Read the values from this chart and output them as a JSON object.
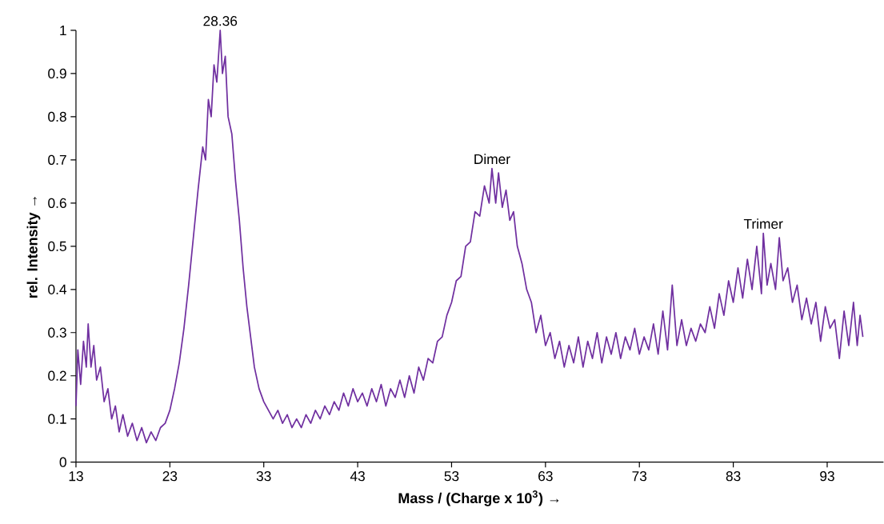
{
  "chart_data": {
    "type": "line",
    "xlabel": "Mass / (Charge x 10$^{3}$) →",
    "ylabel": "rel. Intensity →",
    "color": "#7030a0",
    "xlim": [
      13,
      99
    ],
    "ylim": [
      0,
      1
    ],
    "xticks": [
      13,
      23,
      33,
      43,
      53,
      63,
      73,
      83,
      93
    ],
    "yticks": [
      0,
      0.1,
      0.2,
      0.3,
      0.4,
      0.5,
      0.6,
      0.7,
      0.8,
      0.9,
      1
    ],
    "annotations": [
      {
        "text": "28.36",
        "x": 28.36,
        "y": 1.0
      },
      {
        "text": "Dimer",
        "x": 57.3,
        "y": 0.68
      },
      {
        "text": "Trimer",
        "x": 86.2,
        "y": 0.53
      }
    ],
    "x": [
      13,
      13.2,
      13.5,
      13.8,
      14.1,
      14.3,
      14.6,
      14.9,
      15.2,
      15.6,
      16,
      16.4,
      16.8,
      17.2,
      17.6,
      18,
      18.5,
      19,
      19.5,
      20,
      20.5,
      21,
      21.5,
      22,
      22.5,
      23,
      23.5,
      24,
      24.5,
      25,
      25.5,
      26,
      26.5,
      26.8,
      27.1,
      27.4,
      27.7,
      28,
      28.36,
      28.6,
      28.9,
      29.2,
      29.6,
      30,
      30.4,
      30.8,
      31.2,
      31.6,
      32,
      32.5,
      33,
      33.5,
      34,
      34.5,
      35,
      35.5,
      36,
      36.5,
      37,
      37.5,
      38,
      38.5,
      39,
      39.5,
      40,
      40.5,
      41,
      41.5,
      42,
      42.5,
      43,
      43.5,
      44,
      44.5,
      45,
      45.5,
      46,
      46.5,
      47,
      47.5,
      48,
      48.5,
      49,
      49.5,
      50,
      50.5,
      51,
      51.5,
      52,
      52.5,
      53,
      53.5,
      54,
      54.5,
      55,
      55.5,
      56,
      56.5,
      57,
      57.3,
      57.7,
      58,
      58.4,
      58.8,
      59.2,
      59.6,
      60,
      60.5,
      61,
      61.5,
      62,
      62.5,
      63,
      63.5,
      64,
      64.5,
      65,
      65.5,
      66,
      66.5,
      67,
      67.5,
      68,
      68.5,
      69,
      69.5,
      70,
      70.5,
      71,
      71.5,
      72,
      72.5,
      73,
      73.5,
      74,
      74.5,
      75,
      75.5,
      76,
      76.5,
      77,
      77.5,
      78,
      78.5,
      79,
      79.5,
      80,
      80.5,
      81,
      81.5,
      82,
      82.5,
      83,
      83.5,
      84,
      84.5,
      85,
      85.5,
      86,
      86.2,
      86.6,
      87,
      87.5,
      87.9,
      88.3,
      88.8,
      89.3,
      89.8,
      90.3,
      90.8,
      91.3,
      91.8,
      92.3,
      92.8,
      93.3,
      93.8,
      94.3,
      94.8,
      95.3,
      95.8,
      96.2,
      96.5,
      96.8
    ],
    "values": [
      0.13,
      0.26,
      0.18,
      0.28,
      0.22,
      0.32,
      0.22,
      0.27,
      0.19,
      0.22,
      0.14,
      0.17,
      0.1,
      0.13,
      0.07,
      0.11,
      0.06,
      0.09,
      0.05,
      0.08,
      0.045,
      0.07,
      0.05,
      0.08,
      0.09,
      0.12,
      0.17,
      0.23,
      0.31,
      0.41,
      0.52,
      0.63,
      0.73,
      0.7,
      0.84,
      0.8,
      0.92,
      0.88,
      1.0,
      0.9,
      0.94,
      0.8,
      0.76,
      0.65,
      0.56,
      0.45,
      0.36,
      0.29,
      0.22,
      0.17,
      0.14,
      0.12,
      0.1,
      0.12,
      0.09,
      0.11,
      0.08,
      0.1,
      0.08,
      0.11,
      0.09,
      0.12,
      0.1,
      0.13,
      0.11,
      0.14,
      0.12,
      0.16,
      0.13,
      0.17,
      0.14,
      0.16,
      0.13,
      0.17,
      0.14,
      0.18,
      0.13,
      0.17,
      0.15,
      0.19,
      0.15,
      0.2,
      0.16,
      0.22,
      0.19,
      0.24,
      0.23,
      0.28,
      0.29,
      0.34,
      0.37,
      0.42,
      0.43,
      0.5,
      0.51,
      0.58,
      0.57,
      0.64,
      0.6,
      0.68,
      0.6,
      0.67,
      0.59,
      0.63,
      0.56,
      0.58,
      0.5,
      0.46,
      0.4,
      0.37,
      0.3,
      0.34,
      0.27,
      0.3,
      0.24,
      0.28,
      0.22,
      0.27,
      0.23,
      0.29,
      0.22,
      0.28,
      0.24,
      0.3,
      0.23,
      0.29,
      0.25,
      0.3,
      0.24,
      0.29,
      0.26,
      0.31,
      0.25,
      0.29,
      0.26,
      0.32,
      0.25,
      0.35,
      0.26,
      0.41,
      0.27,
      0.33,
      0.27,
      0.31,
      0.28,
      0.32,
      0.3,
      0.36,
      0.31,
      0.39,
      0.34,
      0.42,
      0.37,
      0.45,
      0.38,
      0.47,
      0.4,
      0.5,
      0.39,
      0.53,
      0.41,
      0.46,
      0.4,
      0.52,
      0.42,
      0.45,
      0.37,
      0.41,
      0.33,
      0.38,
      0.32,
      0.37,
      0.28,
      0.36,
      0.31,
      0.33,
      0.24,
      0.35,
      0.27,
      0.37,
      0.27,
      0.34,
      0.29
    ]
  }
}
